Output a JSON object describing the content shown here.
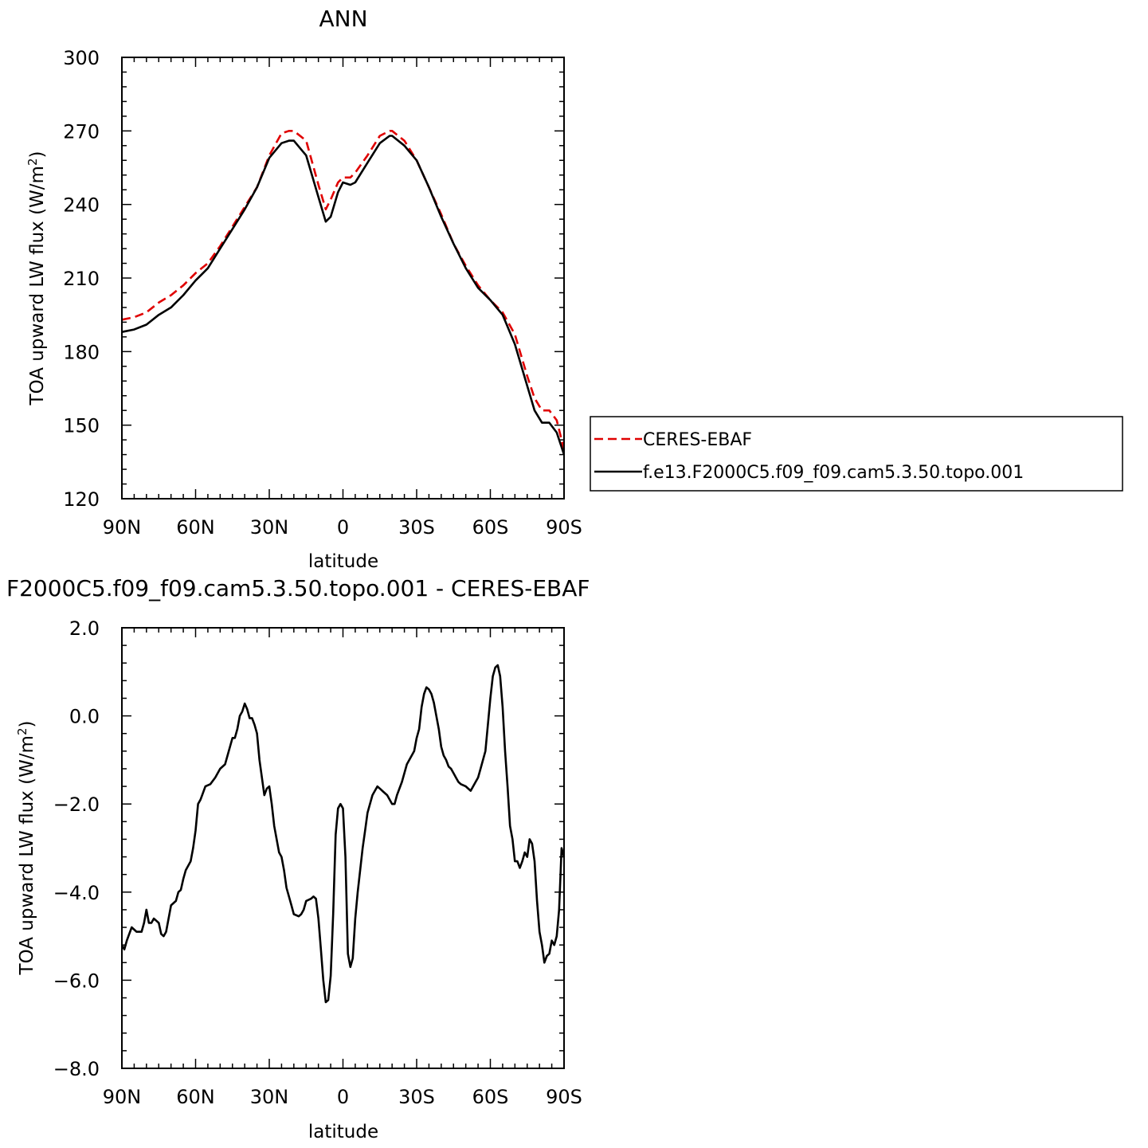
{
  "colors": {
    "obs": "#e00000",
    "model": "#000000"
  },
  "chart_data": [
    {
      "type": "line",
      "title": "ANN",
      "xlabel": "latitude",
      "ylabel": "TOA upward LW flux (W/m",
      "ylabel_sup": "2",
      "ylabel_close": ")",
      "xlim": [
        90,
        -90
      ],
      "ylim": [
        120,
        300
      ],
      "x_ticks": [
        90,
        60,
        30,
        0,
        -30,
        -60,
        -90
      ],
      "x_tick_labels": [
        "90N",
        "60N",
        "30N",
        "0",
        "30S",
        "60S",
        "90S"
      ],
      "y_ticks": [
        120,
        150,
        180,
        210,
        240,
        270,
        300
      ],
      "y_tick_labels": [
        "120",
        "150",
        "180",
        "210",
        "240",
        "270",
        "300"
      ],
      "legend": {
        "placement": "right",
        "entries": [
          "CERES-EBAF",
          "f.e13.F2000C5.f09_f09.cam5.3.50.topo.001"
        ]
      },
      "series": [
        {
          "name": "CERES-EBAF",
          "style": "dashed",
          "x": [
            90,
            85,
            80,
            75,
            70,
            65,
            60,
            55,
            50,
            45,
            40,
            35,
            30,
            25,
            22,
            20,
            15,
            10,
            7,
            5,
            2,
            0,
            -3,
            -5,
            -10,
            -15,
            -19,
            -20,
            -25,
            -30,
            -35,
            -40,
            -45,
            -50,
            -55,
            -60,
            -65,
            -70,
            -75,
            -78,
            -81,
            -84,
            -87,
            -90
          ],
          "values": [
            193,
            194,
            196,
            200,
            203,
            207,
            212,
            216,
            223,
            231,
            239,
            247,
            260,
            269,
            270,
            270,
            266,
            248,
            238,
            242,
            249,
            251,
            251,
            253,
            260,
            268,
            270,
            270,
            266,
            258,
            247,
            236,
            224,
            215,
            207,
            201,
            196,
            187,
            170,
            161,
            156,
            156,
            152,
            140
          ]
        },
        {
          "name": "f.e13.F2000C5.f09_f09.cam5.3.50.topo.001",
          "style": "solid",
          "x": [
            90,
            85,
            80,
            75,
            70,
            65,
            60,
            55,
            50,
            45,
            40,
            35,
            30,
            25,
            22,
            20,
            15,
            10,
            7,
            5,
            2,
            0,
            -3,
            -5,
            -10,
            -15,
            -19,
            -20,
            -25,
            -30,
            -35,
            -40,
            -45,
            -50,
            -55,
            -60,
            -65,
            -70,
            -75,
            -78,
            -81,
            -84,
            -87,
            -90
          ],
          "values": [
            188,
            189,
            191,
            195,
            198,
            203,
            209,
            214,
            222,
            230,
            238,
            247,
            259,
            265,
            266,
            266,
            260,
            243,
            233,
            235,
            245,
            249,
            248,
            249,
            257,
            265,
            268,
            268,
            264,
            258,
            247,
            235,
            224,
            214,
            206,
            201,
            195,
            183,
            166,
            156,
            151,
            151,
            147,
            138
          ]
        }
      ]
    },
    {
      "type": "line",
      "title": "F2000C5.f09_f09.cam5.3.50.topo.001 - CERES-EBAF",
      "xlabel": "latitude",
      "ylabel": "TOA upward LW flux (W/m",
      "ylabel_sup": "2",
      "ylabel_close": ")",
      "xlim": [
        90,
        -90
      ],
      "ylim": [
        -8,
        2
      ],
      "x_ticks": [
        90,
        60,
        30,
        0,
        -30,
        -60,
        -90
      ],
      "x_tick_labels": [
        "90N",
        "60N",
        "30N",
        "0",
        "30S",
        "60S",
        "90S"
      ],
      "y_ticks": [
        -8,
        -6,
        -4,
        -2,
        0,
        2
      ],
      "y_tick_labels": [
        "−8.0",
        "−6.0",
        "−4.0",
        "−2.0",
        "0.0",
        "2.0"
      ],
      "series": [
        {
          "name": "",
          "style": "solid",
          "x": [
            90,
            89,
            88,
            86,
            84,
            82,
            81,
            80,
            79,
            78,
            77,
            76,
            75,
            74,
            73,
            72,
            70,
            68,
            67,
            66,
            65,
            64,
            62,
            61,
            60,
            59,
            58,
            56,
            54,
            52,
            50,
            48,
            47,
            46,
            45,
            44,
            43,
            42,
            41,
            40,
            39,
            38,
            37,
            36,
            35,
            34,
            32,
            31,
            30,
            29,
            28,
            26,
            25,
            24,
            23,
            22,
            21,
            20,
            18,
            17,
            16,
            15,
            13,
            12,
            11,
            10,
            9,
            8,
            7,
            6,
            5,
            4,
            3,
            2,
            1,
            0,
            -1,
            -2,
            -3,
            -4,
            -5,
            -6,
            -7,
            -8,
            -9,
            -10,
            -12,
            -14,
            -15,
            -16,
            -18,
            -20,
            -21,
            -22,
            -24,
            -26,
            -28,
            -29,
            -30,
            -31,
            -32,
            -33,
            -34,
            -35,
            -36,
            -37,
            -38,
            -39,
            -40,
            -41,
            -42,
            -43,
            -44,
            -45,
            -46,
            -47,
            -48,
            -50,
            -52,
            -54,
            -55,
            -56,
            -58,
            -59,
            -60,
            -61,
            -62,
            -63,
            -64,
            -65,
            -66,
            -67,
            -68,
            -69,
            -70,
            -71,
            -72,
            -73,
            -74,
            -75,
            -76,
            -77,
            -78,
            -79,
            -80,
            -81,
            -82,
            -83,
            -84,
            -85,
            -86,
            -87,
            -88,
            -89,
            -90
          ],
          "values": [
            -5.2,
            -5.3,
            -5.1,
            -4.8,
            -4.9,
            -4.9,
            -4.7,
            -4.4,
            -4.7,
            -4.7,
            -4.6,
            -4.65,
            -4.7,
            -4.95,
            -5.0,
            -4.9,
            -4.3,
            -4.2,
            -4.0,
            -3.95,
            -3.7,
            -3.5,
            -3.3,
            -3.0,
            -2.6,
            -2.0,
            -1.9,
            -1.6,
            -1.55,
            -1.4,
            -1.2,
            -1.1,
            -0.9,
            -0.7,
            -0.5,
            -0.5,
            -0.3,
            0.0,
            0.1,
            0.28,
            0.15,
            -0.05,
            -0.05,
            -0.2,
            -0.4,
            -1.0,
            -1.8,
            -1.65,
            -1.6,
            -2.0,
            -2.5,
            -3.1,
            -3.2,
            -3.5,
            -3.9,
            -4.1,
            -4.3,
            -4.5,
            -4.55,
            -4.5,
            -4.4,
            -4.2,
            -4.15,
            -4.1,
            -4.15,
            -4.6,
            -5.3,
            -6.0,
            -6.5,
            -6.45,
            -5.9,
            -4.5,
            -2.7,
            -2.1,
            -2.0,
            -2.1,
            -3.2,
            -5.4,
            -5.7,
            -5.5,
            -4.6,
            -4.0,
            -3.5,
            -3.0,
            -2.6,
            -2.2,
            -1.8,
            -1.6,
            -1.65,
            -1.7,
            -1.8,
            -2.0,
            -2.0,
            -1.8,
            -1.5,
            -1.1,
            -0.9,
            -0.8,
            -0.5,
            -0.3,
            0.2,
            0.5,
            0.65,
            0.6,
            0.5,
            0.3,
            0.0,
            -0.3,
            -0.7,
            -0.9,
            -1.0,
            -1.15,
            -1.2,
            -1.3,
            -1.4,
            -1.5,
            -1.55,
            -1.6,
            -1.7,
            -1.5,
            -1.4,
            -1.2,
            -0.8,
            -0.2,
            0.4,
            0.9,
            1.1,
            1.15,
            0.9,
            0.2,
            -0.8,
            -1.6,
            -2.5,
            -2.8,
            -3.3,
            -3.3,
            -3.45,
            -3.3,
            -3.1,
            -3.2,
            -2.8,
            -2.9,
            -3.3,
            -4.2,
            -4.9,
            -5.2,
            -5.6,
            -5.45,
            -5.4,
            -5.1,
            -5.2,
            -5.0,
            -4.4,
            -3.0,
            -3.2
          ]
        }
      ]
    }
  ]
}
